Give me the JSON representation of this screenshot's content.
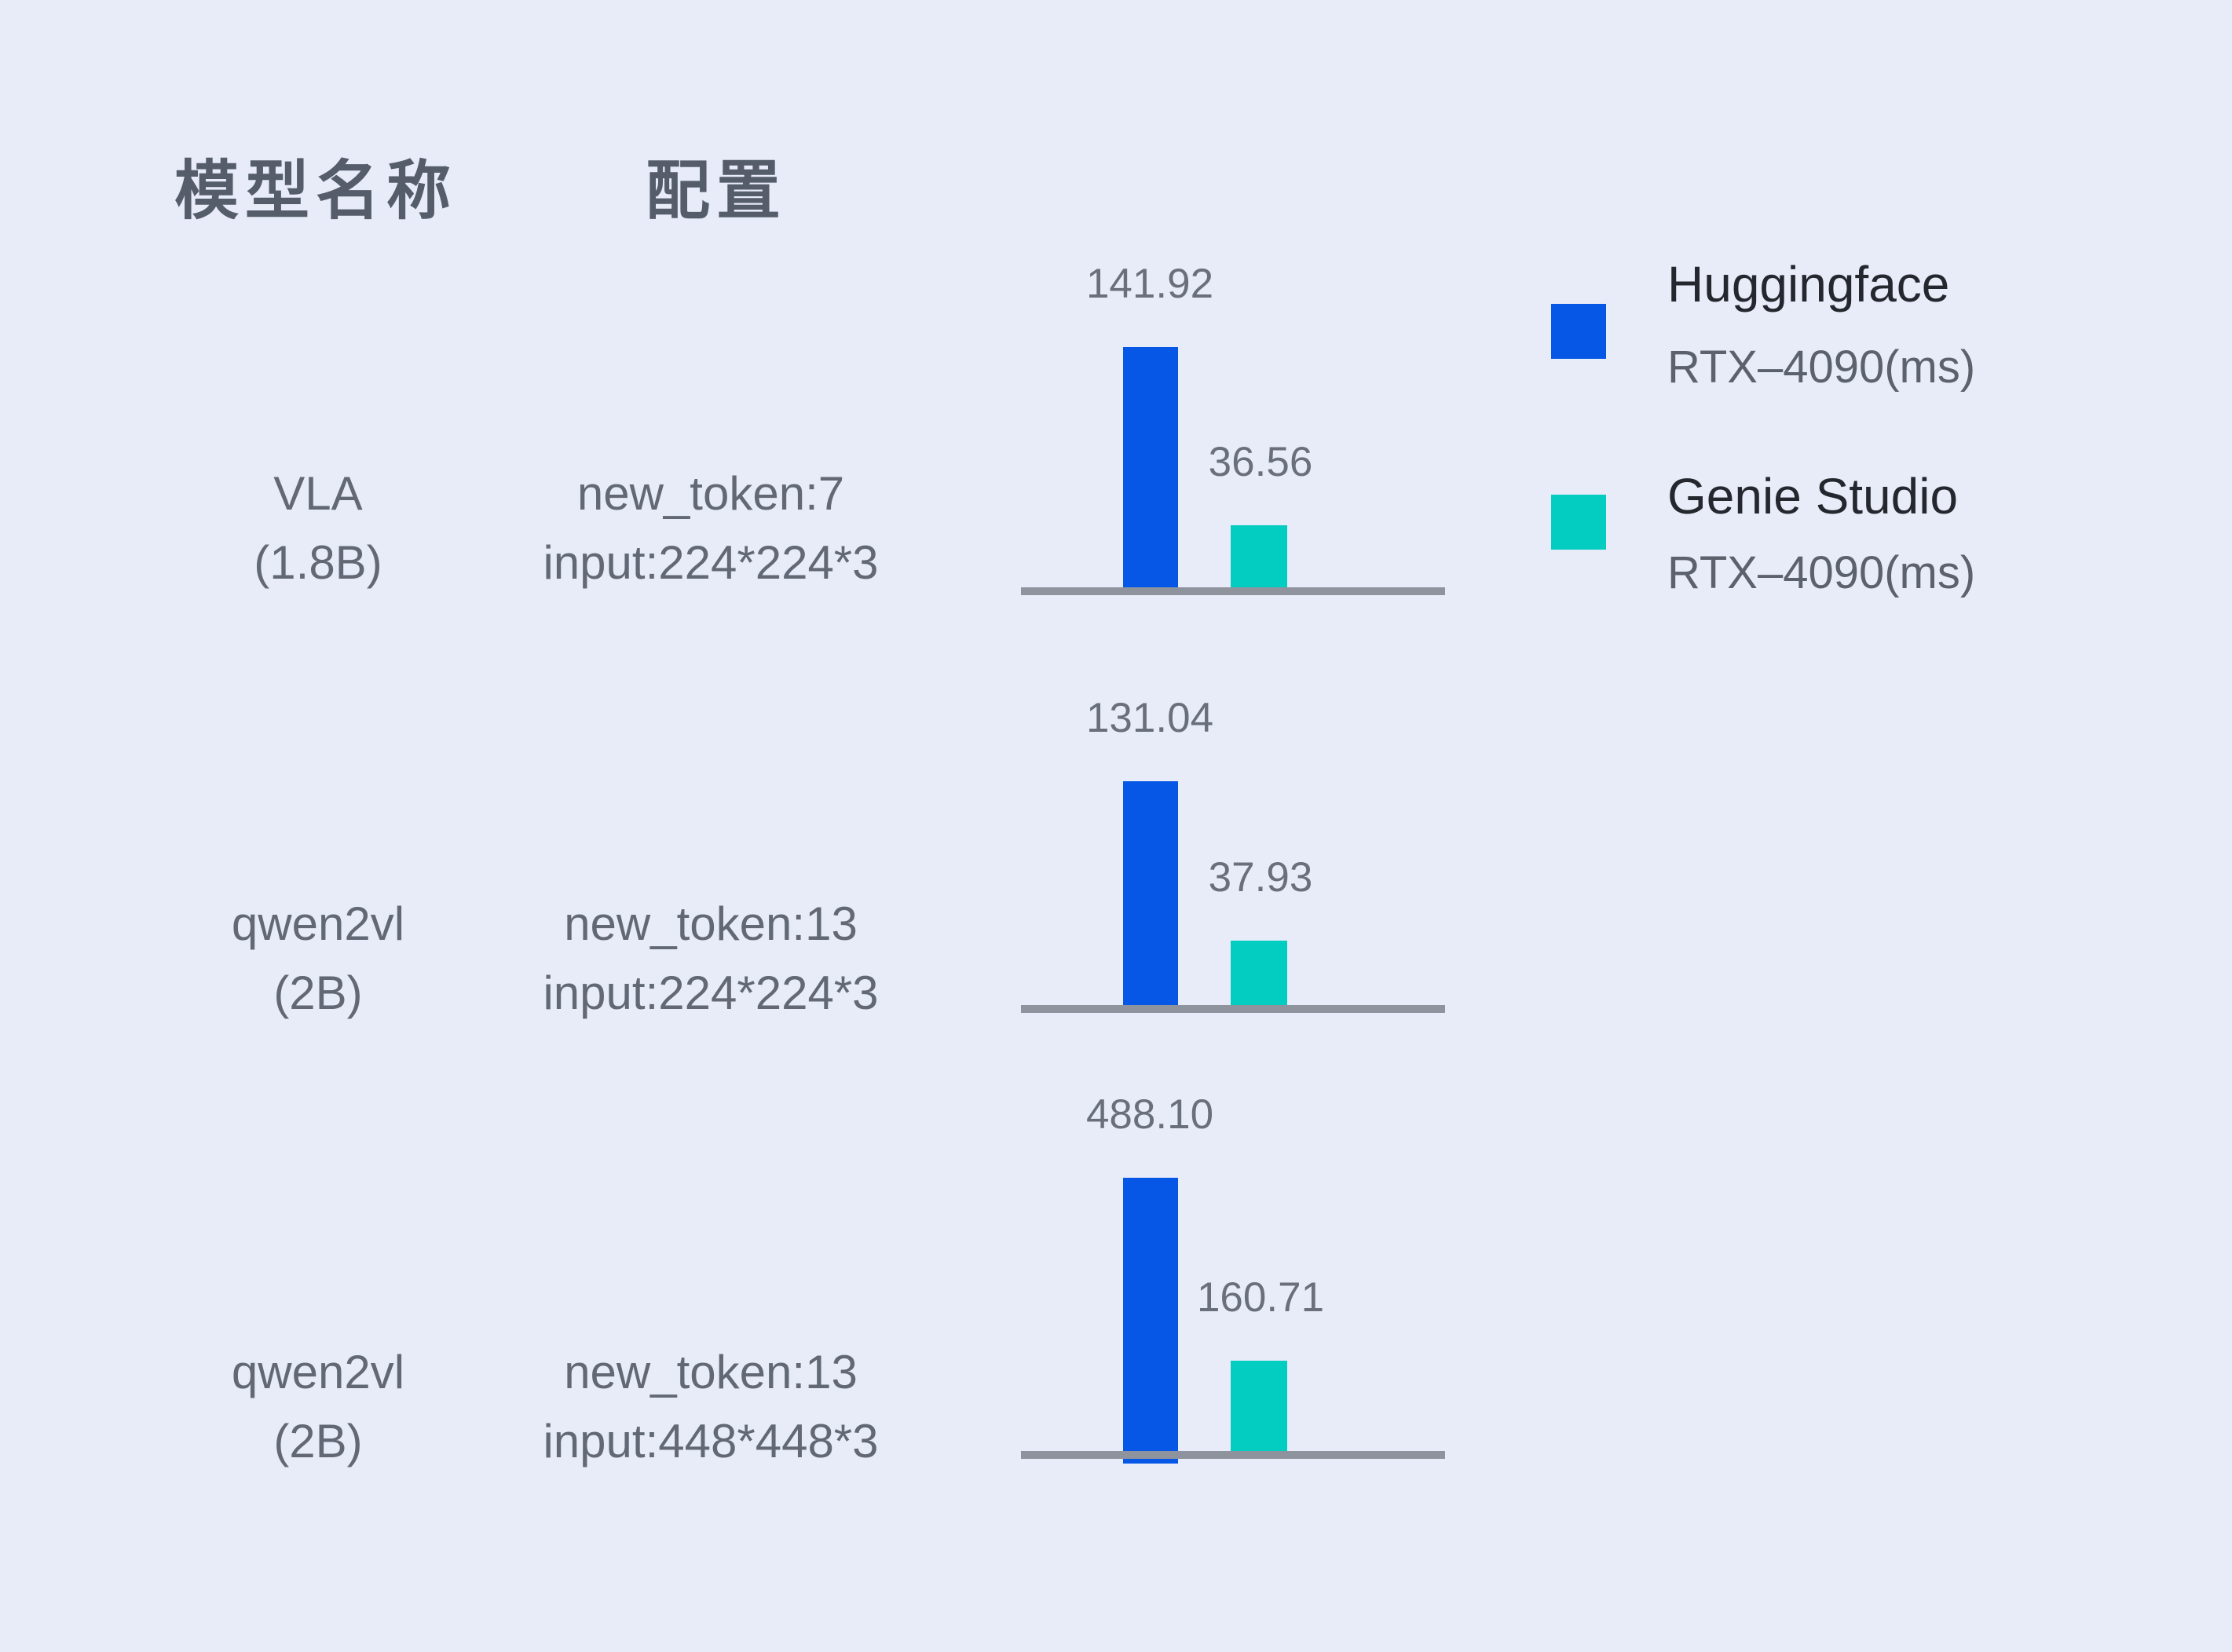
{
  "colors": {
    "background": "#E8ECF9",
    "huggingface_blue": "#0657E5",
    "genie_teal": "#03CCC0",
    "axis_gray": "#8E939E"
  },
  "header": {
    "model_name_label": "模型名称",
    "config_label": "配置"
  },
  "legend": {
    "items": [
      {
        "name": "Huggingface",
        "device": "RTX–4090(ms)"
      },
      {
        "name": "Genie Studio",
        "device": "RTX–4090(ms)"
      }
    ]
  },
  "chart_data": {
    "type": "bar",
    "unit": "ms",
    "orientation": "vertical",
    "legend_position": "right",
    "grid": false,
    "series_names": [
      "Huggingface RTX–4090(ms)",
      "Genie Studio RTX–4090(ms)"
    ],
    "rows": [
      {
        "model": [
          "VLA",
          "(1.8B)"
        ],
        "config": [
          "new_token:7",
          "input:224*224*3"
        ],
        "values": [
          141.92,
          36.56
        ],
        "labels": [
          "141.92",
          "36.56"
        ]
      },
      {
        "model": [
          "qwen2vl",
          "(2B)"
        ],
        "config": [
          "new_token:13",
          "input:224*224*3"
        ],
        "values": [
          131.04,
          37.93
        ],
        "labels": [
          "131.04",
          "37.93"
        ]
      },
      {
        "model": [
          "qwen2vl",
          "(2B)"
        ],
        "config": [
          "new_token:13",
          "input:448*448*3"
        ],
        "values": [
          488.1,
          160.71
        ],
        "labels": [
          "488.10",
          "160.71"
        ]
      }
    ]
  }
}
